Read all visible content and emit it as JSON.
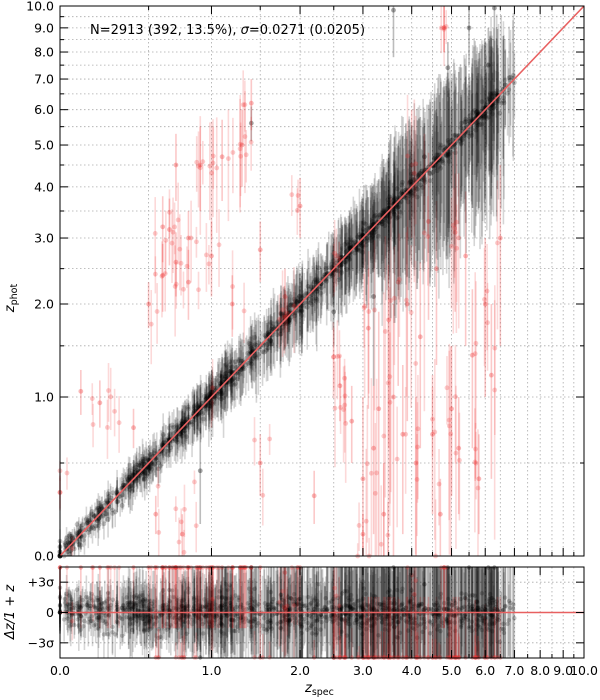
{
  "chart_data": [
    {
      "type": "scatter",
      "panel": "main",
      "title": "",
      "annotation": {
        "prefix": "N=2913 (392, 13.5%), ",
        "sigma_symbol": "σ",
        "suffix": "=0.0271 (0.0205)"
      },
      "xlabel": {
        "base": "z",
        "sub": "spec"
      },
      "ylabel": {
        "base": "z",
        "sub": "phot"
      },
      "scale": "log(1+z)",
      "xlim": [
        0.0,
        10.0
      ],
      "ylim": [
        0.0,
        10.0
      ],
      "grid": true,
      "x_ticks": [
        {
          "value": 0.0,
          "label": "0.0"
        },
        {
          "value": 1.0,
          "label": "1.0"
        },
        {
          "value": 2.0,
          "label": "2.0"
        },
        {
          "value": 3.0,
          "label": "3.0"
        },
        {
          "value": 4.0,
          "label": "4.0"
        },
        {
          "value": 5.0,
          "label": "5.0"
        },
        {
          "value": 6.0,
          "label": "6.0"
        },
        {
          "value": 7.0,
          "label": "7.0"
        },
        {
          "value": 8.0,
          "label": "8.0"
        },
        {
          "value": 9.0,
          "label": "9.0"
        },
        {
          "value": 10.0,
          "label": "10.0"
        }
      ],
      "y_ticks": [
        {
          "value": 0.0,
          "label": "0.0"
        },
        {
          "value": 1.0,
          "label": "1.0"
        },
        {
          "value": 2.0,
          "label": "2.0"
        },
        {
          "value": 3.0,
          "label": "3.0"
        },
        {
          "value": 4.0,
          "label": "4.0"
        },
        {
          "value": 5.0,
          "label": "5.0"
        },
        {
          "value": 6.0,
          "label": "6.0"
        },
        {
          "value": 7.0,
          "label": "7.0"
        },
        {
          "value": 8.0,
          "label": "8.0"
        },
        {
          "value": 9.0,
          "label": "9.0"
        },
        {
          "value": 10.0,
          "label": "10.0"
        }
      ],
      "minor_ticks": [
        0.5,
        1.5,
        2.5,
        3.5,
        4.5,
        5.5,
        6.5,
        7.5,
        8.5,
        9.5
      ],
      "one_to_one_line": {
        "from": [
          0.0,
          0.0
        ],
        "to": [
          10.0,
          10.0
        ],
        "color": "#e86060"
      },
      "series": [
        {
          "name": "",
          "color": "#000000",
          "points": [
            [
              0.0,
              0.02,
              0.05
            ],
            [
              0.05,
              0.06,
              0.05
            ],
            [
              0.1,
              0.09,
              0.06
            ],
            [
              0.15,
              0.17,
              0.07
            ],
            [
              0.2,
              0.21,
              0.06
            ],
            [
              0.25,
              0.24,
              0.08
            ],
            [
              0.3,
              0.31,
              0.1
            ],
            [
              0.35,
              0.36,
              0.08
            ],
            [
              0.4,
              0.42,
              0.1
            ],
            [
              0.45,
              0.44,
              0.12
            ],
            [
              0.5,
              0.52,
              0.1
            ],
            [
              0.55,
              0.53,
              0.12
            ],
            [
              0.6,
              0.62,
              0.14
            ],
            [
              0.65,
              0.66,
              0.12
            ],
            [
              0.7,
              0.69,
              0.14
            ],
            [
              0.75,
              0.78,
              0.15
            ],
            [
              0.8,
              0.79,
              0.16
            ],
            [
              0.85,
              0.88,
              0.18
            ],
            [
              0.9,
              0.91,
              0.2
            ],
            [
              0.95,
              0.93,
              0.2
            ],
            [
              1.0,
              1.02,
              0.22
            ],
            [
              1.05,
              1.03,
              0.2
            ],
            [
              1.1,
              1.14,
              0.24
            ],
            [
              1.15,
              1.13,
              0.25
            ],
            [
              1.2,
              1.22,
              0.26
            ],
            [
              1.3,
              1.29,
              0.28
            ],
            [
              1.4,
              1.43,
              0.3
            ],
            [
              1.5,
              1.49,
              0.3
            ],
            [
              1.6,
              1.62,
              0.33
            ],
            [
              1.7,
              1.69,
              0.35
            ],
            [
              1.8,
              1.83,
              0.36
            ],
            [
              1.9,
              1.88,
              0.4
            ],
            [
              2.0,
              2.03,
              0.4
            ],
            [
              2.1,
              2.08,
              0.42
            ],
            [
              2.2,
              2.23,
              0.45
            ],
            [
              2.3,
              2.28,
              0.46
            ],
            [
              2.4,
              2.43,
              0.5
            ],
            [
              2.5,
              2.48,
              0.5
            ],
            [
              2.6,
              2.63,
              0.55
            ],
            [
              2.7,
              2.68,
              0.55
            ],
            [
              2.8,
              2.84,
              0.6
            ],
            [
              2.9,
              2.88,
              0.6
            ],
            [
              3.0,
              3.05,
              0.7
            ],
            [
              3.1,
              3.08,
              0.7
            ],
            [
              3.2,
              3.25,
              0.8
            ],
            [
              3.3,
              3.27,
              0.9
            ],
            [
              3.4,
              3.45,
              1.0
            ],
            [
              3.5,
              3.48,
              1.2
            ],
            [
              3.6,
              3.63,
              1.2
            ],
            [
              3.7,
              3.68,
              1.3
            ],
            [
              3.8,
              3.84,
              1.4
            ],
            [
              3.9,
              3.88,
              1.5
            ],
            [
              4.0,
              4.05,
              1.5
            ],
            [
              4.2,
              4.18,
              1.6
            ],
            [
              4.4,
              4.45,
              1.7
            ],
            [
              4.6,
              4.58,
              1.8
            ],
            [
              4.8,
              4.85,
              1.9
            ],
            [
              5.0,
              4.96,
              2.0
            ],
            [
              5.2,
              5.25,
              2.0
            ],
            [
              5.4,
              5.37,
              2.1
            ],
            [
              5.6,
              5.66,
              2.1
            ],
            [
              5.8,
              5.76,
              2.2
            ],
            [
              6.0,
              6.06,
              2.3
            ],
            [
              6.2,
              6.15,
              2.4
            ],
            [
              6.4,
              6.45,
              2.5
            ],
            [
              6.6,
              6.65,
              2.0
            ],
            [
              6.3,
              9.9,
              3.0
            ],
            [
              6.1,
              7.5,
              1.5
            ],
            [
              5.5,
              9.0,
              1.5
            ],
            [
              4.9,
              7.4,
              1.0
            ],
            [
              3.6,
              9.8,
              2.0
            ],
            [
              1.4,
              5.6,
              0.5
            ],
            [
              0.9,
              0.45,
              0.3
            ],
            [
              2.5,
              1.9,
              0.4
            ],
            [
              4.3,
              4.7,
              0.9
            ],
            [
              3.2,
              2.1,
              1.0
            ]
          ]
        },
        {
          "name": "",
          "color": "#ee3333",
          "points": [
            [
              0.0,
              0.32,
              0.1
            ],
            [
              0.1,
              1.05,
              0.2
            ],
            [
              0.2,
              0.95,
              0.2
            ],
            [
              0.4,
              0.75,
              0.15
            ],
            [
              0.5,
              2.0,
              0.3
            ],
            [
              0.55,
              0.2,
              0.1
            ],
            [
              0.6,
              2.4,
              0.5
            ],
            [
              0.6,
              3.2,
              0.6
            ],
            [
              0.65,
              3.15,
              0.6
            ],
            [
              0.7,
              2.6,
              0.5
            ],
            [
              0.7,
              4.5,
              0.8
            ],
            [
              0.75,
              0.1,
              0.1
            ],
            [
              0.8,
              2.3,
              0.5
            ],
            [
              0.8,
              3.0,
              0.5
            ],
            [
              0.9,
              4.5,
              1.0
            ],
            [
              1.0,
              2.7,
              0.6
            ],
            [
              1.0,
              0.95,
              0.2
            ],
            [
              1.1,
              4.7,
              1.0
            ],
            [
              1.2,
              2.0,
              0.4
            ],
            [
              1.3,
              5.0,
              1.0
            ],
            [
              1.4,
              6.2,
              0.8
            ],
            [
              1.5,
              2.8,
              0.5
            ],
            [
              1.5,
              0.5,
              0.2
            ],
            [
              1.8,
              2.1,
              0.4
            ],
            [
              2.0,
              3.6,
              0.6
            ],
            [
              2.2,
              0.3,
              0.15
            ],
            [
              2.5,
              2.5,
              0.4
            ],
            [
              2.6,
              1.1,
              0.3
            ],
            [
              2.8,
              0.8,
              0.3
            ],
            [
              3.0,
              0.1,
              0.1
            ],
            [
              3.0,
              0.4,
              0.6
            ],
            [
              3.1,
              1.7,
              0.8
            ],
            [
              3.2,
              0.6,
              0.5
            ],
            [
              3.3,
              0.9,
              1.0
            ],
            [
              3.4,
              0.2,
              0.3
            ],
            [
              3.5,
              1.8,
              1.2
            ],
            [
              3.6,
              1.0,
              1.0
            ],
            [
              3.7,
              2.3,
              1.2
            ],
            [
              3.8,
              0.7,
              0.6
            ],
            [
              3.9,
              2.0,
              1.2
            ],
            [
              4.0,
              4.5,
              1.5
            ],
            [
              4.1,
              0.5,
              0.5
            ],
            [
              4.2,
              1.6,
              1.0
            ],
            [
              4.4,
              3.3,
              1.5
            ],
            [
              4.5,
              0.7,
              0.5
            ],
            [
              4.6,
              2.5,
              1.2
            ],
            [
              4.7,
              0.2,
              0.2
            ],
            [
              4.8,
              9.0,
              1.0
            ],
            [
              5.0,
              0.9,
              0.6
            ],
            [
              5.1,
              3.1,
              1.2
            ],
            [
              5.2,
              0.6,
              0.4
            ],
            [
              5.4,
              2.7,
              1.2
            ],
            [
              5.6,
              1.4,
              0.8
            ],
            [
              5.8,
              0.4,
              0.3
            ],
            [
              6.0,
              2.0,
              1.0
            ],
            [
              6.2,
              1.2,
              0.8
            ],
            [
              6.5,
              3.0,
              1.5
            ]
          ]
        }
      ]
    },
    {
      "type": "scatter",
      "panel": "residuals",
      "title": "",
      "xlabel": {
        "base": "z",
        "sub": "spec"
      },
      "ylabel": "Δz/1 + z",
      "xlim": [
        0.0,
        10.0
      ],
      "ylim_sigma": [
        -4.5,
        4.5
      ],
      "y_ticks": [
        {
          "value": 3,
          "label": "+3σ"
        },
        {
          "value": 0,
          "label": "0"
        },
        {
          "value": -3,
          "label": "−3σ"
        }
      ],
      "zero_line_color": "#e86060"
    }
  ]
}
